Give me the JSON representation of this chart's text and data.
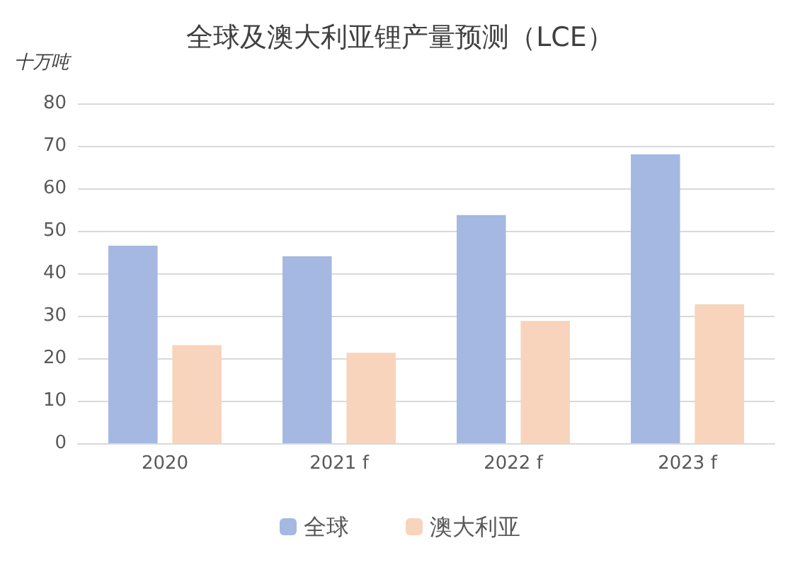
{
  "chart_data": {
    "type": "bar",
    "title": "全球及澳大利亚锂产量预测（LCE）",
    "ylabel": "十万吨",
    "categories": [
      "2020",
      "2021 f",
      "2022 f",
      "2023 f"
    ],
    "series": [
      {
        "name": "全球",
        "color": "#a4b8e2",
        "values": [
          46.5,
          44,
          53.7,
          68
        ]
      },
      {
        "name": "澳大利亚",
        "color": "#f7d4bb",
        "values": [
          23.1,
          21.3,
          28.8,
          32.7
        ]
      }
    ],
    "ylim": [
      0,
      80
    ],
    "yticks": [
      0,
      10,
      20,
      30,
      40,
      50,
      60,
      70,
      80
    ],
    "grid": "y",
    "legend": "bottom"
  }
}
